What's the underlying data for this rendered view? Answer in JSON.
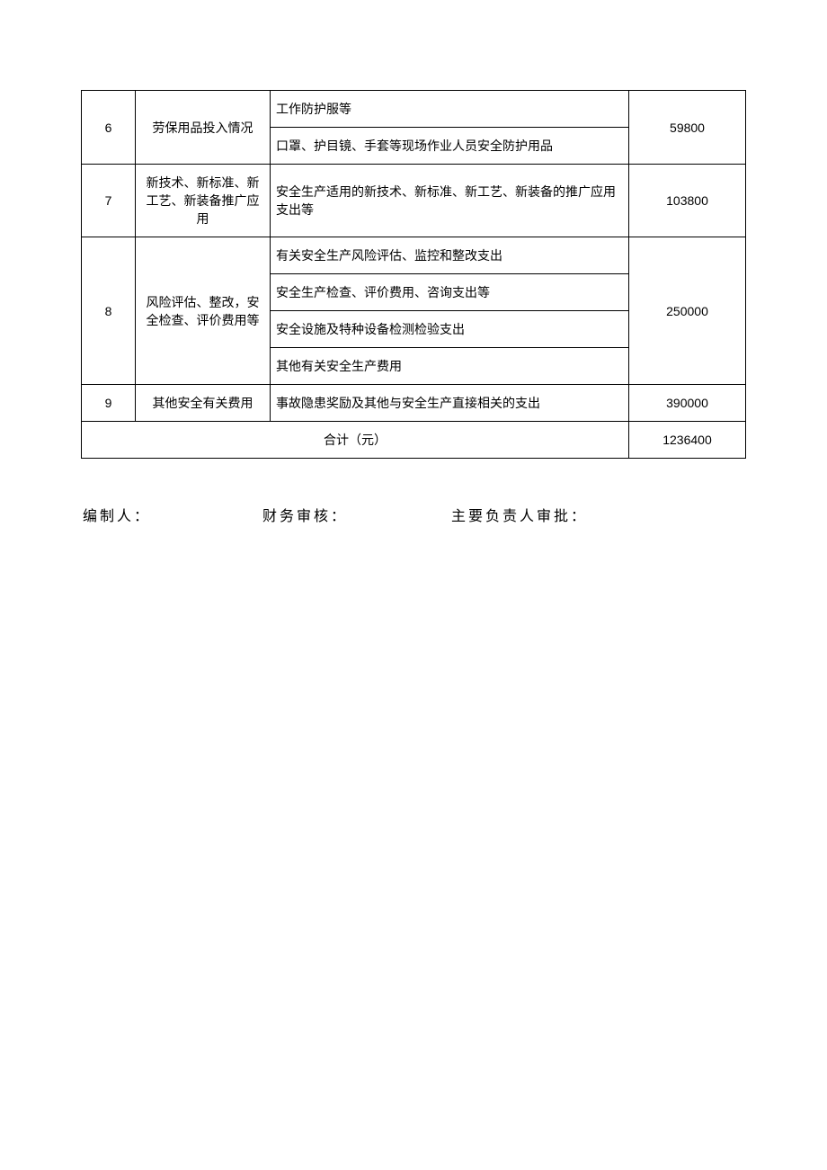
{
  "table": {
    "rows": [
      {
        "num": "6",
        "category": "劳保用品投入情况",
        "details": [
          "工作防护服等",
          "口罩、护目镜、手套等现场作业人员安全防护用品"
        ],
        "amount": "59800"
      },
      {
        "num": "7",
        "category": "新技术、新标准、新工艺、新装备推广应用",
        "details": [
          "安全生产适用的新技术、新标准、新工艺、新装备的推广应用支出等"
        ],
        "amount": "103800"
      },
      {
        "num": "8",
        "category": "风险评估、整改，安全检查、评价费用等",
        "details": [
          "有关安全生产风险评估、监控和整改支出",
          "安全生产检查、评价费用、咨询支出等",
          "安全设施及特种设备检测检验支出",
          "其他有关安全生产费用"
        ],
        "amount": "250000"
      },
      {
        "num": "9",
        "category": "其他安全有关费用",
        "details": [
          "事故隐患奖励及其他与安全生产直接相关的支出"
        ],
        "amount": "390000"
      }
    ],
    "total_label": "合计（元）",
    "total_amount": "1236400"
  },
  "signatures": {
    "preparer": "编制人：",
    "finance": "财务审核：",
    "approver": "主要负责人审批："
  }
}
